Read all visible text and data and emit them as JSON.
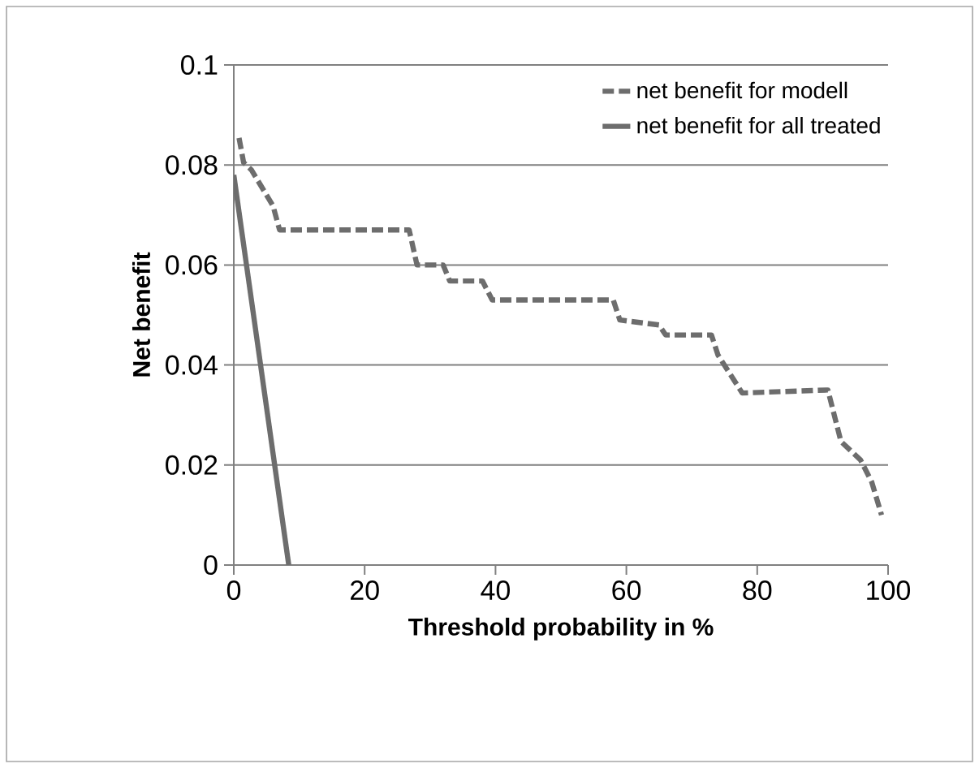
{
  "chart_data": {
    "type": "line",
    "xlabel": "Threshold probability in %",
    "ylabel": "Net benefit",
    "series": [
      {
        "name": "net benefit for modell",
        "color": "#6d6d6d",
        "line_style": "dashed",
        "x": [
          0.8,
          1.5,
          2.7,
          6,
          7,
          26.8,
          28,
          32,
          33,
          38,
          39.5,
          58,
          59,
          65,
          66,
          73,
          74,
          77.7,
          90.8,
          92.8,
          95.8,
          97.5,
          99
        ],
        "values": [
          0.0854,
          0.0805,
          0.079,
          0.0718,
          0.067,
          0.067,
          0.06,
          0.06,
          0.0568,
          0.0568,
          0.053,
          0.053,
          0.049,
          0.048,
          0.046,
          0.046,
          0.042,
          0.0344,
          0.035,
          0.0247,
          0.021,
          0.0166,
          0.01
        ]
      },
      {
        "name": "net benefit for all treated",
        "color": "#6d6d6d",
        "line_style": "solid",
        "x": [
          0,
          8.4
        ],
        "values": [
          0.078,
          0
        ]
      }
    ],
    "xlim": [
      0,
      100
    ],
    "ylim": [
      0,
      0.1
    ],
    "xticks": [
      0,
      20,
      40,
      60,
      80,
      100
    ],
    "yticks": [
      0,
      0.02,
      0.04,
      0.06,
      0.08,
      0.1
    ],
    "grid": "y",
    "legend": "top right",
    "marker": "none"
  }
}
